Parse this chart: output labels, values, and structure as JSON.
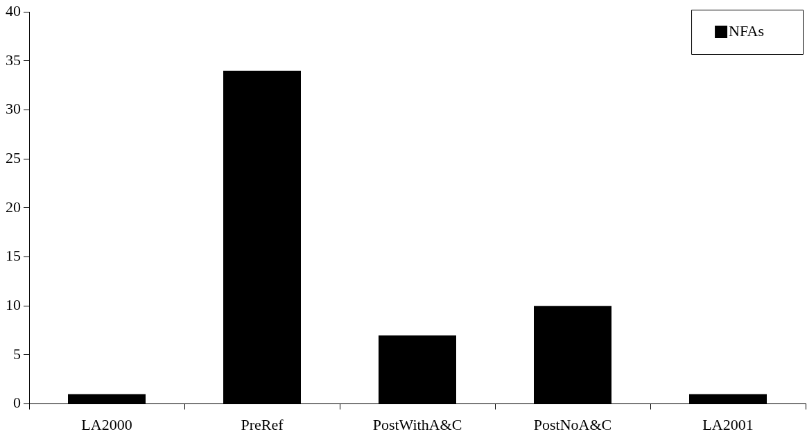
{
  "chart_data": {
    "type": "bar",
    "categories": [
      "LA2000",
      "PreRef",
      "PostWithA&C",
      "PostNoA&C",
      "LA2001"
    ],
    "series": [
      {
        "name": "NFAs",
        "color": "#000000",
        "values": [
          1,
          34,
          7,
          10,
          1
        ]
      }
    ],
    "ylim": [
      0,
      40
    ],
    "yticks": [
      0,
      5,
      10,
      15,
      20,
      25,
      30,
      35,
      40
    ],
    "grid": false,
    "legend": "top right"
  }
}
